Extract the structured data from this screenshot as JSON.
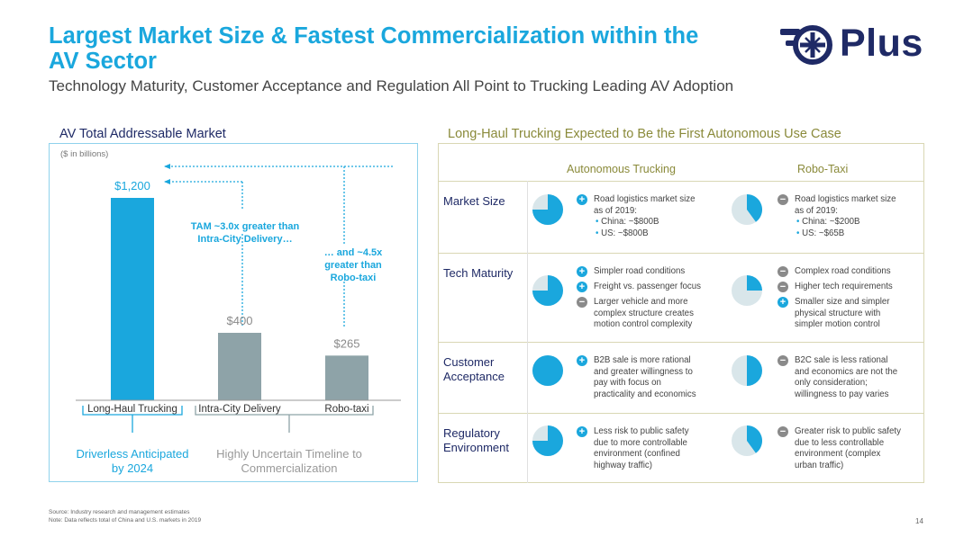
{
  "header": {
    "title": "Largest Market Size & Fastest Commercialization within the AV Sector",
    "subtitle": "Technology Maturity, Customer Acceptance and Regulation All Point to Trucking Leading AV Adoption",
    "logo_text": "Plus"
  },
  "left_panel": {
    "title": "AV Total Addressable Market",
    "unit": "($ in billions)",
    "annotation_1": [
      "TAM ~3.0x greater than",
      "Intra-City Delivery…"
    ],
    "annotation_2": [
      "… and ~4.5x",
      "greater than",
      "Robo-taxi"
    ],
    "footnote_left": [
      "Driverless Anticipated",
      "by 2024"
    ],
    "footnote_right": [
      "Highly Uncertain Timeline to",
      "Commercialization"
    ]
  },
  "chart_data": {
    "type": "bar",
    "title": "AV Total Addressable Market",
    "ylabel": "($ in billions)",
    "categories": [
      "Long-Haul Trucking",
      "Intra-City Delivery",
      "Robo-taxi"
    ],
    "values": [
      1200,
      400,
      265
    ],
    "data_labels": [
      "$1,200",
      "$400",
      "$265"
    ],
    "colors": [
      "#1aa7dd",
      "#8ea3a8",
      "#8ea3a8"
    ],
    "ylim": [
      0,
      1200
    ]
  },
  "right_panel": {
    "title": "Long-Haul Trucking Expected to Be the First Autonomous Use Case",
    "col_headers": [
      "Autonomous Trucking",
      "Robo-Taxi"
    ],
    "rows": [
      {
        "label": [
          "Market Size"
        ],
        "trucking": {
          "pie": 0.75,
          "items": [
            {
              "sign": "plus",
              "lines": [
                "Road logistics market size",
                "as of 2019:"
              ],
              "subs": [
                "China: ~$800B",
                "US: ~$800B"
              ]
            }
          ]
        },
        "taxi": {
          "pie": 0.4,
          "items": [
            {
              "sign": "minus",
              "lines": [
                "Road logistics market size",
                "as of 2019:"
              ],
              "subs": [
                "China: ~$200B",
                "US: ~$65B"
              ]
            }
          ]
        }
      },
      {
        "label": [
          "Tech Maturity"
        ],
        "trucking": {
          "pie": 0.75,
          "items": [
            {
              "sign": "plus",
              "lines": [
                "Simpler road conditions"
              ]
            },
            {
              "sign": "plus",
              "lines": [
                "Freight vs. passenger focus"
              ]
            },
            {
              "sign": "minus",
              "lines": [
                "Larger vehicle and more",
                "complex structure creates",
                "motion control complexity"
              ]
            }
          ]
        },
        "taxi": {
          "pie": 0.25,
          "items": [
            {
              "sign": "minus",
              "lines": [
                "Complex road conditions"
              ]
            },
            {
              "sign": "minus",
              "lines": [
                "Higher tech requirements"
              ]
            },
            {
              "sign": "plus",
              "lines": [
                "Smaller size and simpler",
                "physical structure with",
                "simpler motion control"
              ]
            }
          ]
        }
      },
      {
        "label": [
          "Customer",
          "Acceptance"
        ],
        "trucking": {
          "pie": 1.0,
          "items": [
            {
              "sign": "plus",
              "lines": [
                "B2B sale is more rational",
                "and greater willingness to",
                "pay with focus on",
                "practicality and economics"
              ]
            }
          ]
        },
        "taxi": {
          "pie": 0.5,
          "items": [
            {
              "sign": "minus",
              "lines": [
                "B2C sale is less rational",
                "and economics are not the",
                "only consideration;",
                "willingness to pay varies"
              ]
            }
          ]
        }
      },
      {
        "label": [
          "Regulatory",
          "Environment"
        ],
        "trucking": {
          "pie": 0.75,
          "items": [
            {
              "sign": "plus",
              "lines": [
                "Less risk to public safety",
                "due to more controllable",
                "environment (confined",
                "highway traffic)"
              ]
            }
          ]
        },
        "taxi": {
          "pie": 0.4,
          "items": [
            {
              "sign": "minus",
              "lines": [
                "Greater risk to public safety",
                "due to less controllable",
                "environment (complex",
                "urban traffic)"
              ]
            }
          ]
        }
      }
    ]
  },
  "footer": {
    "source": "Source: Industry research and management estimates",
    "note": "Note: Data reflects total of China and U.S. markets in 2019",
    "page": "14"
  },
  "colors": {
    "accent": "#1aa7dd",
    "brand": "#1f2a66",
    "gray_bar": "#8ea3a8",
    "olive": "#8a8a3a",
    "pie_bg": "#d9e6ea"
  }
}
